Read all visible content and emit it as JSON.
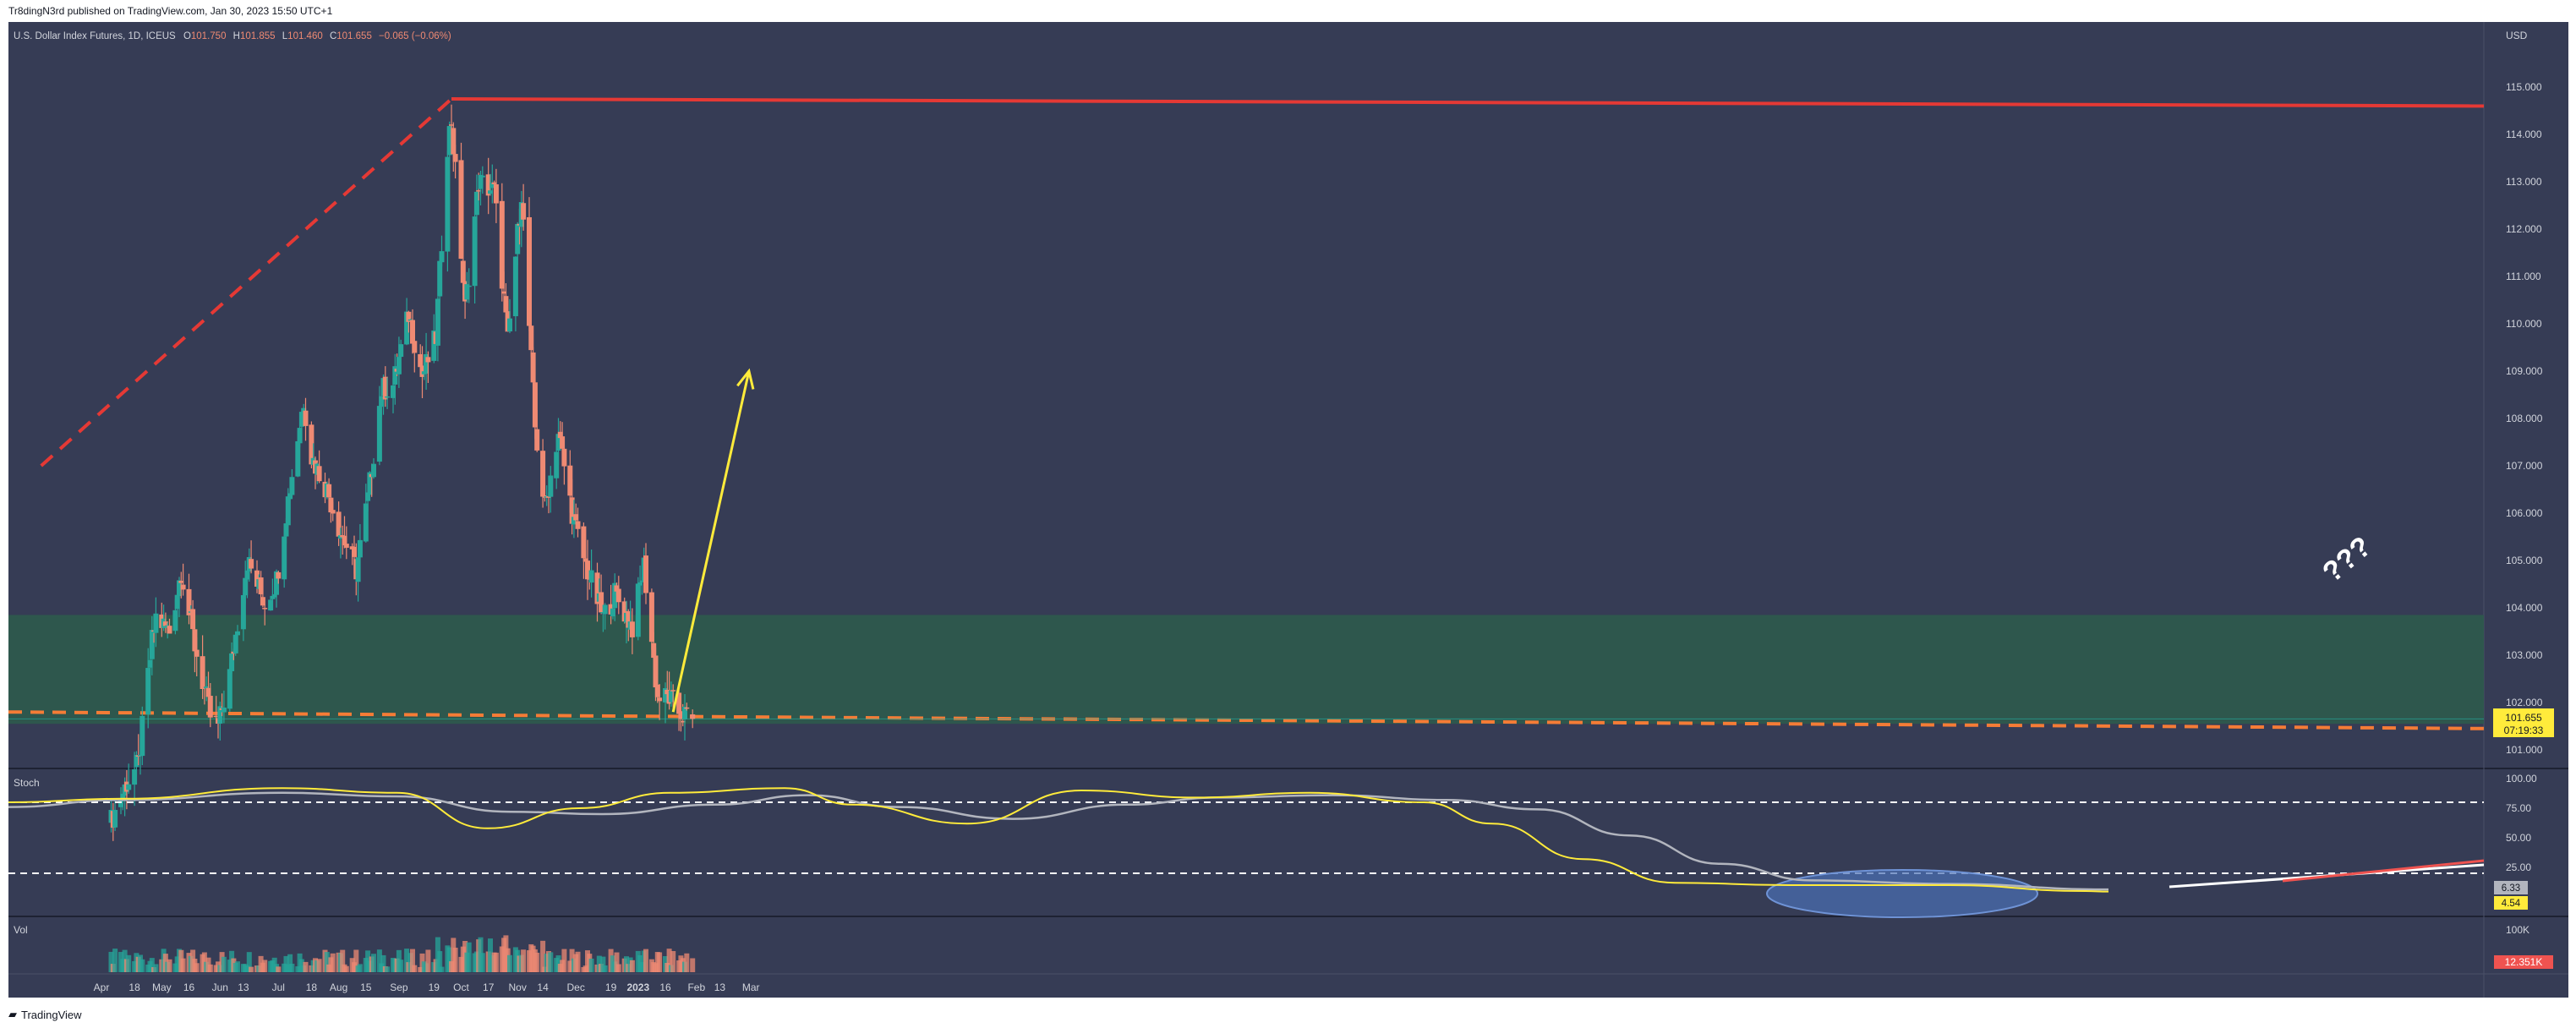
{
  "header": {
    "published": "Tr8dingN3rd published on TradingView.com, Jan 30, 2023 15:50 UTC+1"
  },
  "footer": {
    "brand": "TradingView"
  },
  "legend": {
    "symbol": "U.S. Dollar Index Futures, 1D, ICEUS",
    "o_label": "O",
    "o_value": "101.750",
    "h_label": "H",
    "h_value": "101.855",
    "l_label": "L",
    "l_value": "101.460",
    "c_label": "C",
    "c_value": "101.655",
    "change": "−0.065 (−0.06%)"
  },
  "colors": {
    "panel_bg": "#363c55",
    "up": "#26a69a",
    "down": "#ef8a73",
    "demand_zone": "#2e5a4d",
    "trendline": "#e53935",
    "support_dashed": "#f57c36",
    "arrow": "#ffeb3b",
    "stoch_k": "#ffeb3b",
    "stoch_d": "#b2b5be",
    "price_tag": "#ffeb3b",
    "vol_tag": "#ef5350",
    "oversold_ellipse": "#4a6fb5"
  },
  "price_axis": {
    "currency": "USD",
    "labels": [
      "115.000",
      "114.000",
      "113.000",
      "112.000",
      "111.000",
      "110.000",
      "109.000",
      "108.000",
      "107.000",
      "106.000",
      "105.000",
      "104.000",
      "103.000",
      "102.000",
      "101.000"
    ],
    "last_price": "101.655",
    "countdown": "07:19:33"
  },
  "stoch": {
    "title": "Stoch",
    "axis_labels": [
      "100.00",
      "75.00",
      "50.00",
      "25.00"
    ],
    "k_value": "4.54",
    "d_value": "6.33"
  },
  "volume": {
    "title": "Vol",
    "axis_label": "100K",
    "last": "12.351K"
  },
  "annotation": {
    "question": "???"
  },
  "chart_data": {
    "type": "candlestick",
    "title": "U.S. Dollar Index Futures, 1D, ICEUS",
    "x_ticks": [
      "Apr",
      "18",
      "May",
      "16",
      "Jun",
      "13",
      "Jul",
      "18",
      "Aug",
      "15",
      "Sep",
      "19",
      "Oct",
      "17",
      "Nov",
      "14",
      "Dec",
      "19",
      "2023",
      "16",
      "Feb",
      "13",
      "Mar"
    ],
    "ylim": [
      100.7,
      116.1
    ],
    "y_scale": "linear",
    "series": [
      {
        "name": "U.S. Dollar Index Futures",
        "anchors": [
          {
            "date": "2022-04-06",
            "close": 99.5
          },
          {
            "date": "2022-04-14",
            "close": 100.3
          },
          {
            "date": "2022-04-20",
            "close": 100.7
          },
          {
            "date": "2022-04-27",
            "close": 103.3
          },
          {
            "date": "2022-04-29",
            "close": 103.8
          },
          {
            "date": "2022-05-06",
            "close": 103.5
          },
          {
            "date": "2022-05-12",
            "close": 104.8
          },
          {
            "date": "2022-05-19",
            "close": 103.2
          },
          {
            "date": "2022-05-27",
            "close": 101.7
          },
          {
            "date": "2022-05-31",
            "close": 101.5
          },
          {
            "date": "2022-06-06",
            "close": 102.6
          },
          {
            "date": "2022-06-10",
            "close": 103.7
          },
          {
            "date": "2022-06-15",
            "close": 105.0
          },
          {
            "date": "2022-06-24",
            "close": 104.1
          },
          {
            "date": "2022-06-30",
            "close": 104.6
          },
          {
            "date": "2022-07-06",
            "close": 106.3
          },
          {
            "date": "2022-07-14",
            "close": 108.4
          },
          {
            "date": "2022-07-18",
            "close": 107.2
          },
          {
            "date": "2022-07-26",
            "close": 106.5
          },
          {
            "date": "2022-08-02",
            "close": 105.6
          },
          {
            "date": "2022-08-10",
            "close": 104.8
          },
          {
            "date": "2022-08-16",
            "close": 106.3
          },
          {
            "date": "2022-08-23",
            "close": 108.6
          },
          {
            "date": "2022-08-29",
            "close": 108.7
          },
          {
            "date": "2022-09-06",
            "close": 110.2
          },
          {
            "date": "2022-09-13",
            "close": 108.9
          },
          {
            "date": "2022-09-20",
            "close": 109.7
          },
          {
            "date": "2022-09-26",
            "close": 113.8
          },
          {
            "date": "2022-09-28",
            "close": 114.3
          },
          {
            "date": "2022-10-03",
            "close": 111.5
          },
          {
            "date": "2022-10-05",
            "close": 110.3
          },
          {
            "date": "2022-10-12",
            "close": 113.0
          },
          {
            "date": "2022-10-20",
            "close": 112.8
          },
          {
            "date": "2022-10-27",
            "close": 109.6
          },
          {
            "date": "2022-11-03",
            "close": 112.8
          },
          {
            "date": "2022-11-10",
            "close": 107.8
          },
          {
            "date": "2022-11-15",
            "close": 106.1
          },
          {
            "date": "2022-11-22",
            "close": 107.7
          },
          {
            "date": "2022-11-30",
            "close": 105.8
          },
          {
            "date": "2022-12-06",
            "close": 104.9
          },
          {
            "date": "2022-12-15",
            "close": 103.8
          },
          {
            "date": "2022-12-21",
            "close": 104.3
          },
          {
            "date": "2022-12-30",
            "close": 103.6
          },
          {
            "date": "2023-01-05",
            "close": 104.9
          },
          {
            "date": "2023-01-12",
            "close": 102.1
          },
          {
            "date": "2023-01-18",
            "close": 102.1
          },
          {
            "date": "2023-01-23",
            "close": 101.8
          },
          {
            "date": "2023-01-30",
            "close": 101.655
          }
        ]
      }
    ],
    "last_bar": {
      "open": 101.75,
      "high": 101.855,
      "low": 101.46,
      "close": 101.655
    },
    "drawings": {
      "dashed_trendline": {
        "from": {
          "date": "2022-03-01",
          "price": 107.0
        },
        "to": {
          "date": "2022-09-28",
          "price": 114.75
        }
      },
      "resistance_line": {
        "from": {
          "date": "2022-09-28",
          "price": 114.75
        },
        "to": {
          "date": "2023-03-31",
          "price": 114.6
        }
      },
      "demand_zone": {
        "from_price": 101.55,
        "to_price": 103.85
      },
      "support_dashed": {
        "from": {
          "date": "2022-03-01",
          "price": 101.8
        },
        "to": {
          "date": "2023-03-31",
          "price": 101.45
        }
      },
      "projection_arrow": {
        "from": {
          "date": "2023-01-20",
          "price": 101.8
        },
        "to": {
          "date": "2023-02-28",
          "price": 109.0
        }
      }
    },
    "stoch_series": [
      {
        "name": "%K",
        "anchors": [
          [
            0,
            80
          ],
          [
            0.05,
            83
          ],
          [
            0.12,
            92
          ],
          [
            0.17,
            88
          ],
          [
            0.21,
            58
          ],
          [
            0.25,
            75
          ],
          [
            0.29,
            88
          ],
          [
            0.34,
            92
          ],
          [
            0.37,
            78
          ],
          [
            0.42,
            62
          ],
          [
            0.47,
            90
          ],
          [
            0.52,
            84
          ],
          [
            0.57,
            88
          ],
          [
            0.62,
            80
          ],
          [
            0.65,
            62
          ],
          [
            0.69,
            32
          ],
          [
            0.73,
            12
          ],
          [
            0.78,
            10
          ],
          [
            0.85,
            10
          ],
          [
            0.91,
            5
          ],
          [
            0.92,
            4.54
          ]
        ]
      },
      {
        "name": "%D",
        "anchors": [
          [
            0,
            76
          ],
          [
            0.05,
            82
          ],
          [
            0.12,
            88
          ],
          [
            0.17,
            85
          ],
          [
            0.22,
            72
          ],
          [
            0.26,
            70
          ],
          [
            0.31,
            78
          ],
          [
            0.35,
            86
          ],
          [
            0.39,
            76
          ],
          [
            0.44,
            66
          ],
          [
            0.49,
            78
          ],
          [
            0.53,
            84
          ],
          [
            0.58,
            86
          ],
          [
            0.63,
            82
          ],
          [
            0.67,
            74
          ],
          [
            0.71,
            52
          ],
          [
            0.75,
            28
          ],
          [
            0.79,
            14
          ],
          [
            0.85,
            11
          ],
          [
            0.92,
            6.33
          ]
        ]
      }
    ],
    "stoch_levels": [
      80,
      20
    ]
  }
}
